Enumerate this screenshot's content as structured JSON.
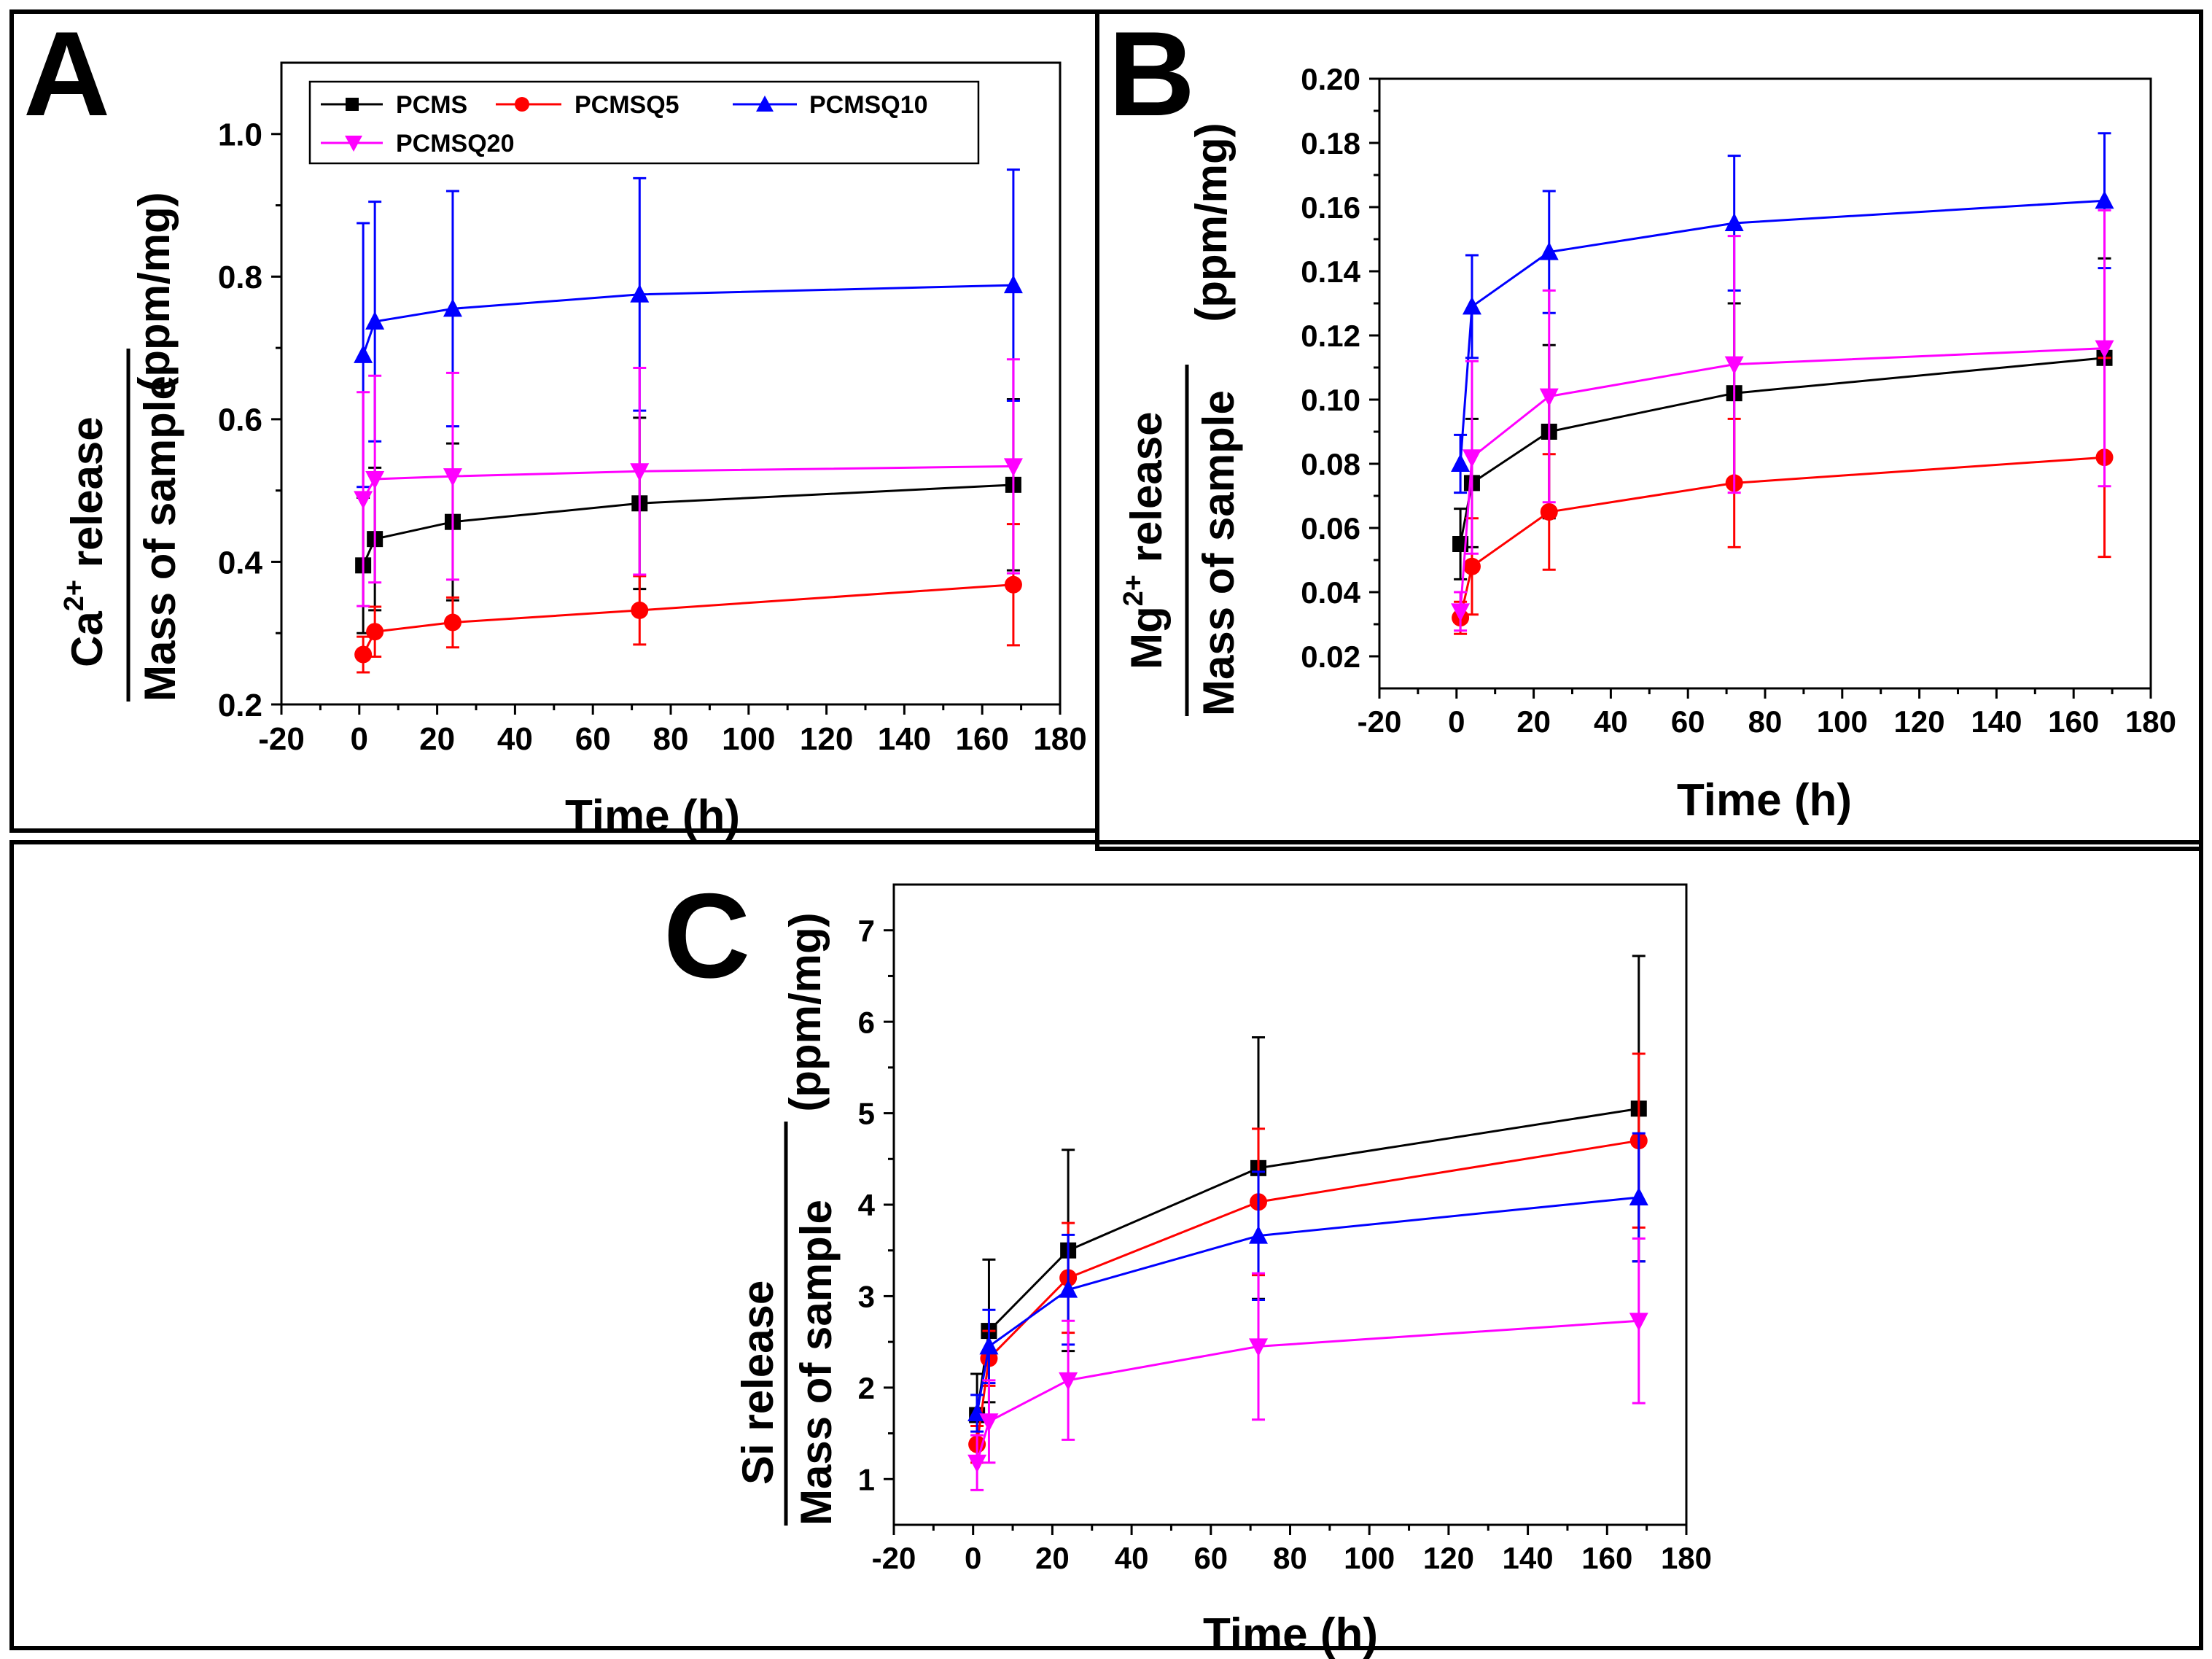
{
  "figure": {
    "panels": [
      {
        "letter": "A",
        "xlabel": "Time (h)",
        "ylabel_num": [
          "Ca",
          "2+",
          " release"
        ],
        "ylabel_den": "Mass of sample",
        "ylabel_unit": "(ppm/mg)",
        "x_ticks": [
          "-20",
          "0",
          "20",
          "40",
          "60",
          "80",
          "100",
          "120",
          "140",
          "160",
          "180"
        ],
        "y_ticks": [
          "0.2",
          "0.4",
          "0.6",
          "0.8",
          "1.0"
        ]
      },
      {
        "letter": "B",
        "xlabel": "Time (h)",
        "ylabel_num": [
          "Mg",
          "2+",
          " release"
        ],
        "ylabel_den": "Mass of sample",
        "ylabel_unit": "(ppm/mg)",
        "x_ticks": [
          "-20",
          "0",
          "20",
          "40",
          "60",
          "80",
          "100",
          "120",
          "140",
          "160",
          "180"
        ],
        "y_ticks": [
          "0.02",
          "0.04",
          "0.06",
          "0.08",
          "0.10",
          "0.12",
          "0.14",
          "0.16",
          "0.18",
          "0.20"
        ]
      },
      {
        "letter": "C",
        "xlabel": "Time (h)",
        "ylabel_num": [
          "Si release",
          "",
          ""
        ],
        "ylabel_den": "Mass of sample",
        "ylabel_unit": "(ppm/mg)",
        "x_ticks": [
          "-20",
          "0",
          "20",
          "40",
          "60",
          "80",
          "100",
          "120",
          "140",
          "160",
          "180"
        ],
        "y_ticks": [
          "1",
          "2",
          "3",
          "4",
          "5",
          "6",
          "7"
        ]
      }
    ]
  },
  "chart_data": [
    {
      "type": "line",
      "panel": "A",
      "title": "",
      "xlabel": "Time (h)",
      "ylabel": "Ca2+ release / Mass of sample (ppm/mg)",
      "xlim": [
        -20,
        180
      ],
      "ylim": [
        0.2,
        1.1
      ],
      "x": [
        1,
        4,
        24,
        72,
        168
      ],
      "legend_position": "top-left",
      "series": [
        {
          "name": "PCMS",
          "color": "#000000",
          "marker": "square",
          "values": [
            0.395,
            0.432,
            0.456,
            0.482,
            0.508
          ],
          "errors": [
            0.095,
            0.1,
            0.11,
            0.12,
            0.12
          ]
        },
        {
          "name": "PCMSQ5",
          "color": "#ff0000",
          "marker": "circle",
          "values": [
            0.27,
            0.302,
            0.315,
            0.332,
            0.368
          ],
          "errors": [
            0.025,
            0.035,
            0.035,
            0.048,
            0.085
          ]
        },
        {
          "name": "PCMSQ10",
          "color": "#0000ff",
          "marker": "triangle-up",
          "values": [
            0.69,
            0.737,
            0.755,
            0.775,
            0.788
          ],
          "errors": [
            0.185,
            0.168,
            0.165,
            0.163,
            0.162
          ]
        },
        {
          "name": "PCMSQ20",
          "color": "#ff00ff",
          "marker": "triangle-down",
          "values": [
            0.488,
            0.516,
            0.52,
            0.527,
            0.534
          ],
          "errors": [
            0.15,
            0.145,
            0.145,
            0.145,
            0.15
          ]
        }
      ]
    },
    {
      "type": "line",
      "panel": "B",
      "title": "",
      "xlabel": "Time (h)",
      "ylabel": "Mg2+ release / Mass of sample (ppm/mg)",
      "xlim": [
        -20,
        180
      ],
      "ylim": [
        0.01,
        0.2
      ],
      "x": [
        1,
        4,
        24,
        72,
        168
      ],
      "series": [
        {
          "name": "PCMS",
          "color": "#000000",
          "marker": "square",
          "values": [
            0.055,
            0.074,
            0.09,
            0.102,
            0.113
          ],
          "errors": [
            0.011,
            0.02,
            0.027,
            0.028,
            0.031
          ]
        },
        {
          "name": "PCMSQ5",
          "color": "#ff0000",
          "marker": "circle",
          "values": [
            0.032,
            0.048,
            0.065,
            0.074,
            0.082
          ],
          "errors": [
            0.005,
            0.015,
            0.018,
            0.02,
            0.031
          ]
        },
        {
          "name": "PCMSQ10",
          "color": "#0000ff",
          "marker": "triangle-up",
          "values": [
            0.08,
            0.129,
            0.146,
            0.155,
            0.162
          ],
          "errors": [
            0.009,
            0.016,
            0.019,
            0.021,
            0.021
          ]
        },
        {
          "name": "PCMSQ20",
          "color": "#ff00ff",
          "marker": "triangle-down",
          "values": [
            0.034,
            0.082,
            0.101,
            0.111,
            0.116
          ],
          "errors": [
            0.006,
            0.03,
            0.033,
            0.04,
            0.043
          ]
        }
      ]
    },
    {
      "type": "line",
      "panel": "C",
      "title": "",
      "xlabel": "Time (h)",
      "ylabel": "Si release / Mass of sample (ppm/mg)",
      "xlim": [
        -20,
        180
      ],
      "ylim": [
        0.5,
        7.5
      ],
      "x": [
        1,
        4,
        24,
        72,
        168
      ],
      "series": [
        {
          "name": "PCMS",
          "color": "#000000",
          "marker": "square",
          "values": [
            1.7,
            2.62,
            3.5,
            4.4,
            5.05
          ],
          "errors": [
            0.45,
            0.78,
            1.1,
            1.43,
            1.67
          ]
        },
        {
          "name": "PCMSQ5",
          "color": "#ff0000",
          "marker": "circle",
          "values": [
            1.38,
            2.32,
            3.2,
            4.03,
            4.7
          ],
          "errors": [
            0.2,
            0.3,
            0.6,
            0.8,
            0.95
          ]
        },
        {
          "name": "PCMSQ10",
          "color": "#0000ff",
          "marker": "triangle-up",
          "values": [
            1.72,
            2.45,
            3.07,
            3.66,
            4.08
          ],
          "errors": [
            0.2,
            0.4,
            0.6,
            0.7,
            0.7
          ]
        },
        {
          "name": "PCMSQ20",
          "color": "#ff00ff",
          "marker": "triangle-down",
          "values": [
            1.18,
            1.63,
            2.08,
            2.45,
            2.73
          ],
          "errors": [
            0.3,
            0.45,
            0.65,
            0.8,
            0.9
          ]
        }
      ]
    }
  ]
}
